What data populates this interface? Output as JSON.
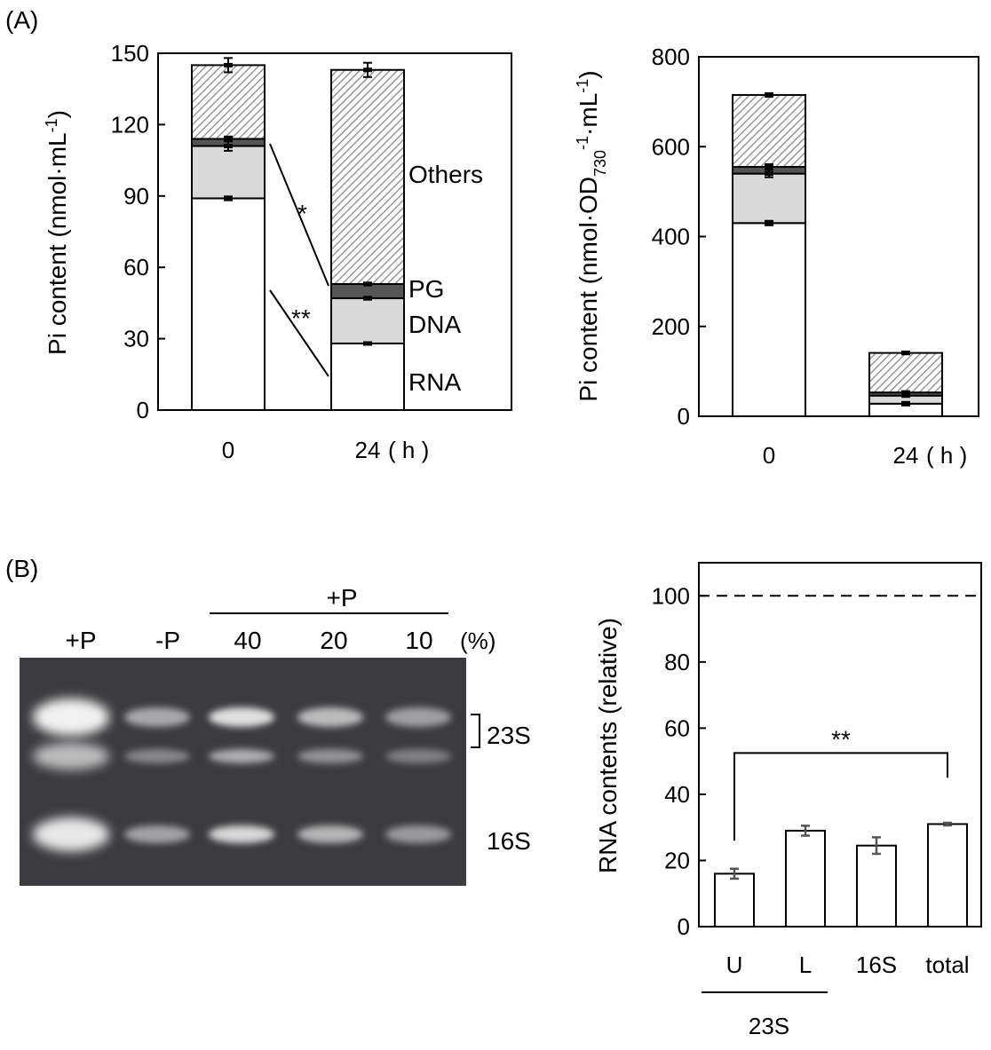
{
  "panel_a_label": "(A)",
  "panel_b_label": "(B)",
  "chart_data": [
    {
      "type": "bar",
      "stacked": true,
      "categories": [
        "0",
        "24"
      ],
      "x_unit": "( h )",
      "ylabel": "Pi content (nmol·mL-1)",
      "ylim": [
        0,
        150
      ],
      "yticks": [
        0,
        30,
        60,
        90,
        120,
        150
      ],
      "series": [
        {
          "name": "RNA",
          "values": [
            89,
            28
          ],
          "errors": [
            0.8,
            0.5
          ]
        },
        {
          "name": "DNA",
          "values": [
            22,
            19
          ],
          "errors": [
            2.0,
            0.6
          ]
        },
        {
          "name": "PG",
          "values": [
            3,
            6
          ],
          "errors": [
            1.0,
            0.6
          ]
        },
        {
          "name": "Others",
          "values": [
            31,
            90
          ],
          "errors": [
            3.0,
            3.0
          ]
        }
      ],
      "annotations": [
        "*",
        "**"
      ]
    },
    {
      "type": "bar",
      "stacked": true,
      "categories": [
        "0",
        "24"
      ],
      "x_unit": "( h )",
      "ylabel": "Pi content (nmol·OD730-1·mL-1)",
      "ylim": [
        0,
        800
      ],
      "yticks": [
        0,
        200,
        400,
        600,
        800
      ],
      "series": [
        {
          "values": [
            430,
            28
          ],
          "errors": [
            5,
            4
          ]
        },
        {
          "values": [
            110,
            18
          ],
          "errors": [
            8,
            2
          ]
        },
        {
          "values": [
            15,
            7
          ],
          "errors": [
            6,
            2
          ]
        },
        {
          "values": [
            160,
            88
          ],
          "errors": [
            4,
            3
          ]
        }
      ]
    },
    {
      "type": "bar",
      "categories": [
        "U",
        "L",
        "16S",
        "total"
      ],
      "group_label": "23S",
      "ylabel": "RNA contents (relative)",
      "ylim": [
        0,
        110
      ],
      "yticks": [
        0,
        20,
        40,
        60,
        80,
        100
      ],
      "values": [
        16,
        29,
        24.5,
        31
      ],
      "errors": [
        1.5,
        1.5,
        2.5,
        0.4
      ],
      "reference_line": 100,
      "annotation": "**"
    }
  ],
  "gel": {
    "lane_labels": [
      "+P",
      "-P",
      "40",
      "20",
      "10"
    ],
    "unit_label": "(%)",
    "group_label": "+P",
    "band_labels": [
      "23S",
      "16S"
    ]
  },
  "colors": {
    "rna": "#ffffff",
    "dna": "#d9d9d9",
    "pg": "#555555",
    "others_hatch": "#8a8a8a",
    "gel_bg": "#3c3c40",
    "band": "#f2f2f2"
  }
}
